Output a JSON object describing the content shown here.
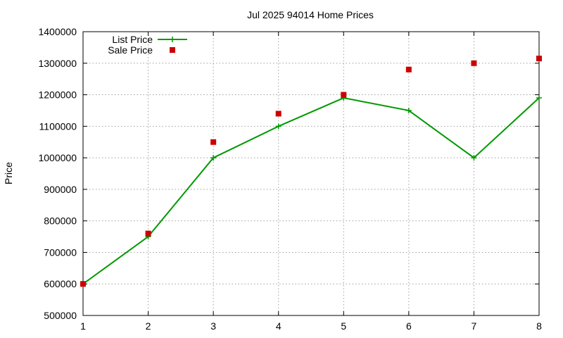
{
  "chart_data": {
    "type": "line",
    "title": "Jul 2025 94014 Home Prices",
    "xlabel": "",
    "ylabel": "Price",
    "x": [
      1,
      2,
      3,
      4,
      5,
      6,
      7,
      8
    ],
    "xlim": [
      1,
      8
    ],
    "ylim": [
      500000,
      1400000
    ],
    "yticks": [
      "500000",
      "600000",
      "700000",
      "800000",
      "900000",
      "1000000",
      "1100000",
      "1200000",
      "1300000",
      "1400000"
    ],
    "xticks": [
      "1",
      "2",
      "3",
      "4",
      "5",
      "6",
      "7",
      "8"
    ],
    "grid": true,
    "legend_position": "top-left",
    "series": [
      {
        "name": "List Price",
        "style": "line-plus",
        "color": "#009900",
        "values": [
          600000,
          750000,
          1000000,
          1100000,
          1190000,
          1150000,
          1000000,
          1190000
        ]
      },
      {
        "name": "Sale Price",
        "style": "square-points",
        "color": "#cc0000",
        "values": [
          600000,
          760000,
          1050000,
          1140000,
          1200000,
          1280000,
          1300000,
          1315000
        ]
      }
    ]
  }
}
